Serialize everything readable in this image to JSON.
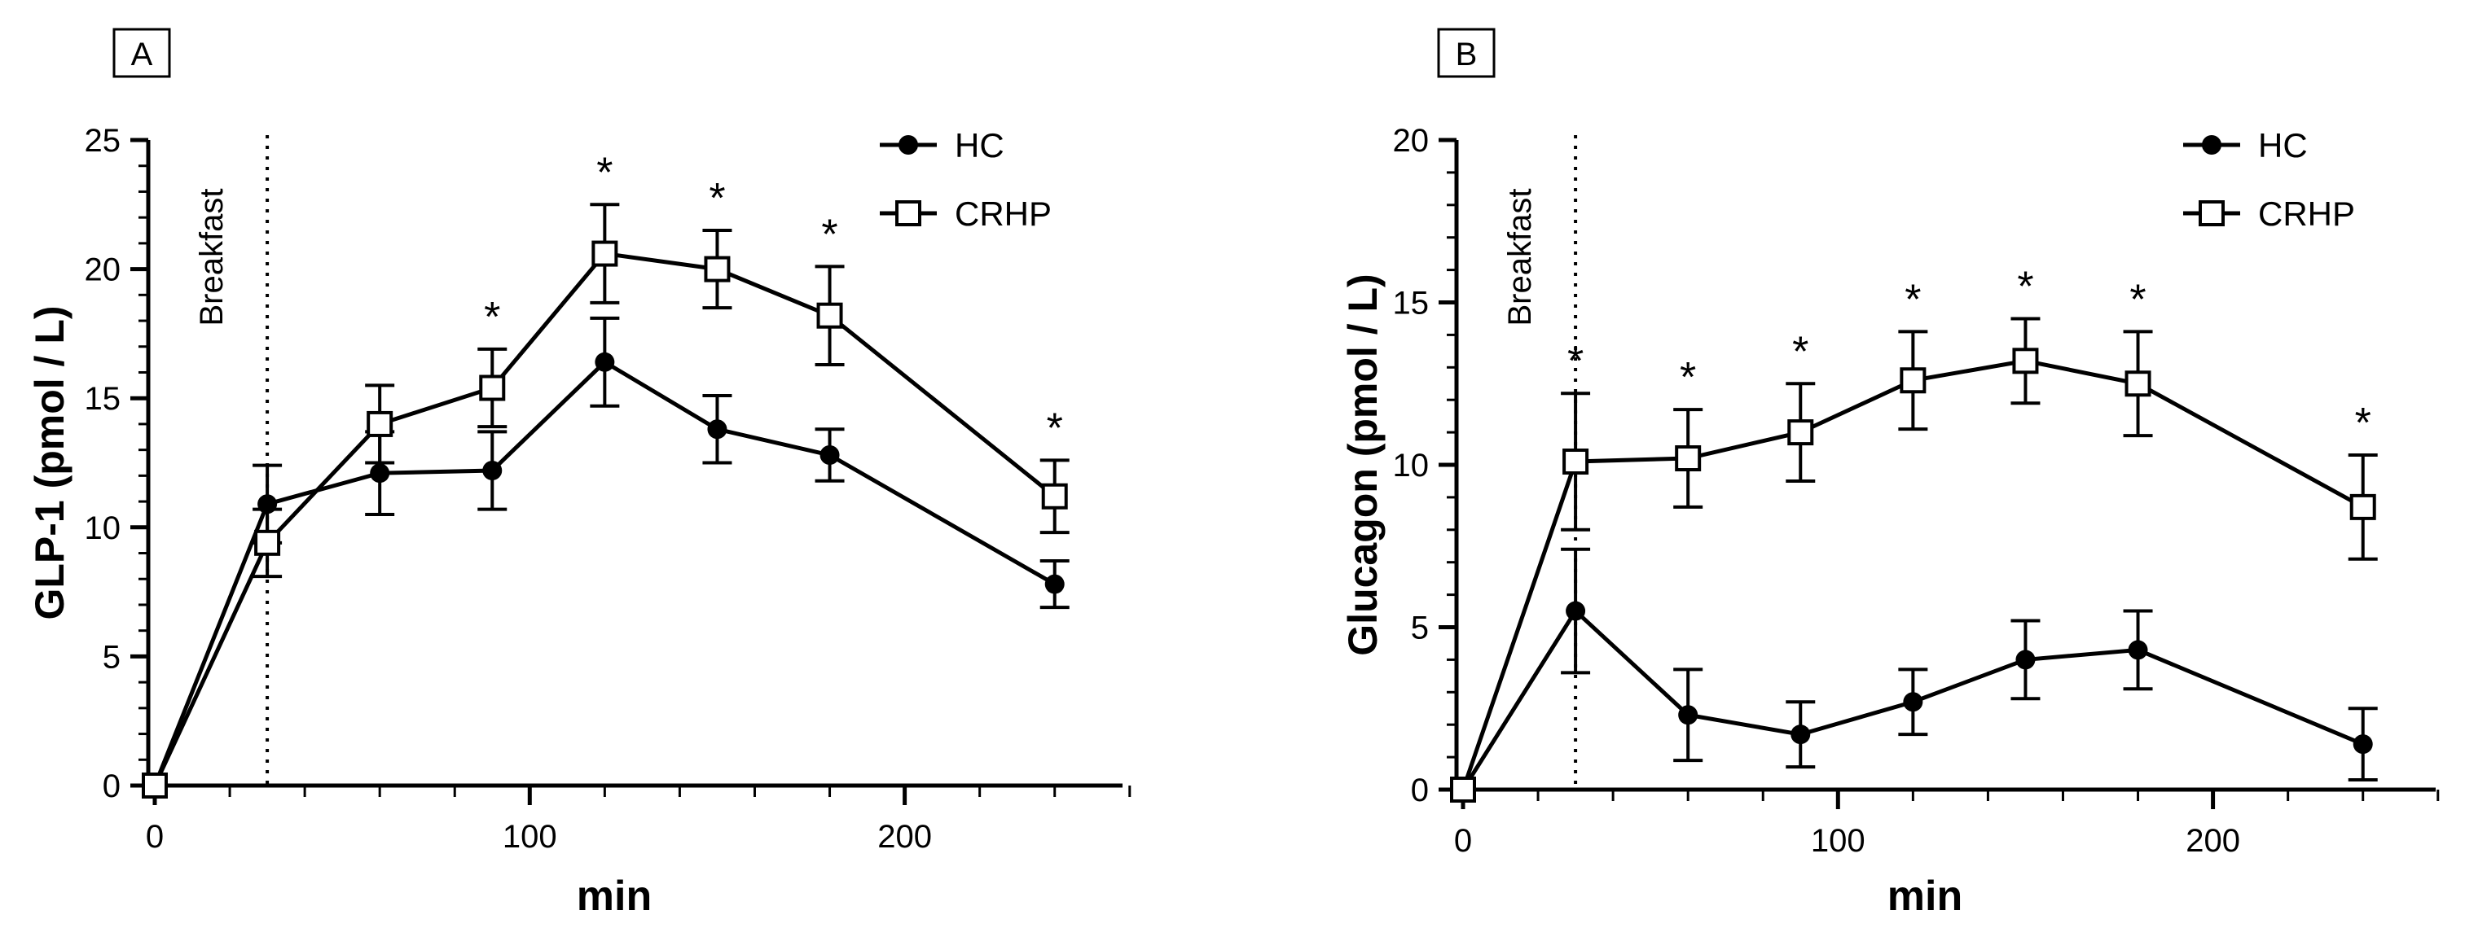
{
  "chart_data": [
    {
      "type": "line",
      "panel_label": "A",
      "xlabel": "min",
      "ylabel": "GLP-1 (pmol / L)",
      "xlim": [
        0,
        260
      ],
      "ylim": [
        0,
        25
      ],
      "xticks": [
        0,
        100,
        200
      ],
      "yticks": [
        0,
        5,
        10,
        15,
        20,
        25
      ],
      "vline": {
        "x": 30,
        "label": "Breakfast"
      },
      "legend_position": "top-right",
      "series": [
        {
          "name": "HC",
          "marker": "filled-circle",
          "x": [
            0,
            30,
            60,
            90,
            120,
            150,
            180,
            240
          ],
          "y": [
            0,
            10.9,
            12.1,
            12.2,
            16.4,
            13.8,
            12.8,
            7.8
          ],
          "err": [
            0,
            1.5,
            1.6,
            1.5,
            1.7,
            1.3,
            1.0,
            0.9
          ]
        },
        {
          "name": "CRHP",
          "marker": "open-square",
          "x": [
            0,
            30,
            60,
            90,
            120,
            150,
            180,
            240
          ],
          "y": [
            0,
            9.4,
            14.0,
            15.4,
            20.6,
            20.0,
            18.2,
            11.2
          ],
          "err": [
            0,
            1.3,
            1.5,
            1.5,
            1.9,
            1.5,
            1.9,
            1.4
          ]
        }
      ],
      "significance": {
        "symbol": "*",
        "x": [
          90,
          120,
          150,
          180,
          240
        ]
      }
    },
    {
      "type": "line",
      "panel_label": "B",
      "xlabel": "min",
      "ylabel": "Glucagon (pmol / L)",
      "xlim": [
        0,
        260
      ],
      "ylim": [
        0,
        20
      ],
      "xticks": [
        0,
        100,
        200
      ],
      "yticks": [
        0,
        5,
        10,
        15,
        20
      ],
      "vline": {
        "x": 30,
        "label": "Breakfast"
      },
      "legend_position": "top-right",
      "series": [
        {
          "name": "HC",
          "marker": "filled-circle",
          "x": [
            0,
            30,
            60,
            90,
            120,
            150,
            180,
            240
          ],
          "y": [
            0,
            5.5,
            2.3,
            1.7,
            2.7,
            4.0,
            4.3,
            1.4
          ],
          "err": [
            0,
            1.9,
            1.4,
            1.0,
            1.0,
            1.2,
            1.2,
            1.1
          ]
        },
        {
          "name": "CRHP",
          "marker": "open-square",
          "x": [
            0,
            30,
            60,
            90,
            120,
            150,
            180,
            240
          ],
          "y": [
            0,
            10.1,
            10.2,
            11.0,
            12.6,
            13.2,
            12.5,
            8.7
          ],
          "err": [
            0,
            2.1,
            1.5,
            1.5,
            1.5,
            1.3,
            1.6,
            1.6
          ]
        }
      ],
      "significance": {
        "symbol": "*",
        "x": [
          30,
          60,
          90,
          120,
          150,
          180,
          240
        ]
      }
    }
  ]
}
